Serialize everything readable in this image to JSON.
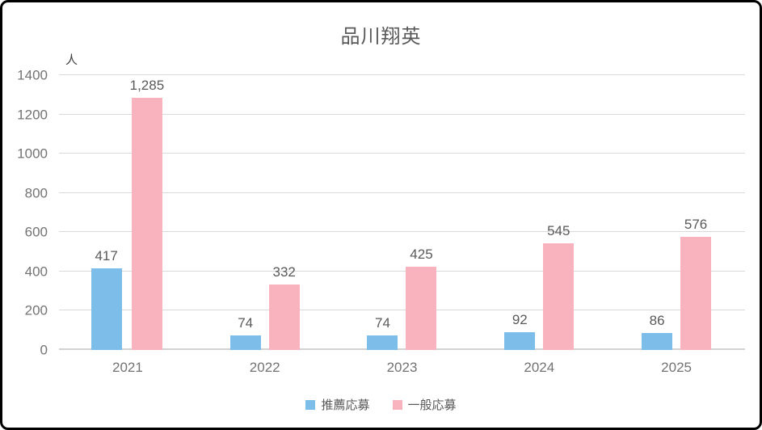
{
  "chart_data": {
    "type": "bar",
    "title": "品川翔英",
    "unit_label": "人",
    "categories": [
      "2021",
      "2022",
      "2023",
      "2024",
      "2025"
    ],
    "series": [
      {
        "name": "推薦応募",
        "color": "#7CBEE9",
        "values": [
          417,
          74,
          74,
          92,
          86
        ],
        "value_labels": [
          "417",
          "74",
          "74",
          "92",
          "86"
        ]
      },
      {
        "name": "一般応募",
        "color": "#F9B3BE",
        "values": [
          1285,
          332,
          425,
          545,
          576
        ],
        "value_labels": [
          "1,285",
          "332",
          "425",
          "545",
          "576"
        ]
      }
    ],
    "ylim": [
      0,
      1400
    ],
    "yticks": [
      0,
      200,
      400,
      600,
      800,
      1000,
      1200,
      1400
    ],
    "grid": true,
    "legend_position": "bottom"
  },
  "colors": {
    "frame_border": "#000000",
    "text_label": "#595959",
    "text_muted": "#737373",
    "gridline": "#D9D9D9",
    "axis": "#D2D2D2"
  }
}
